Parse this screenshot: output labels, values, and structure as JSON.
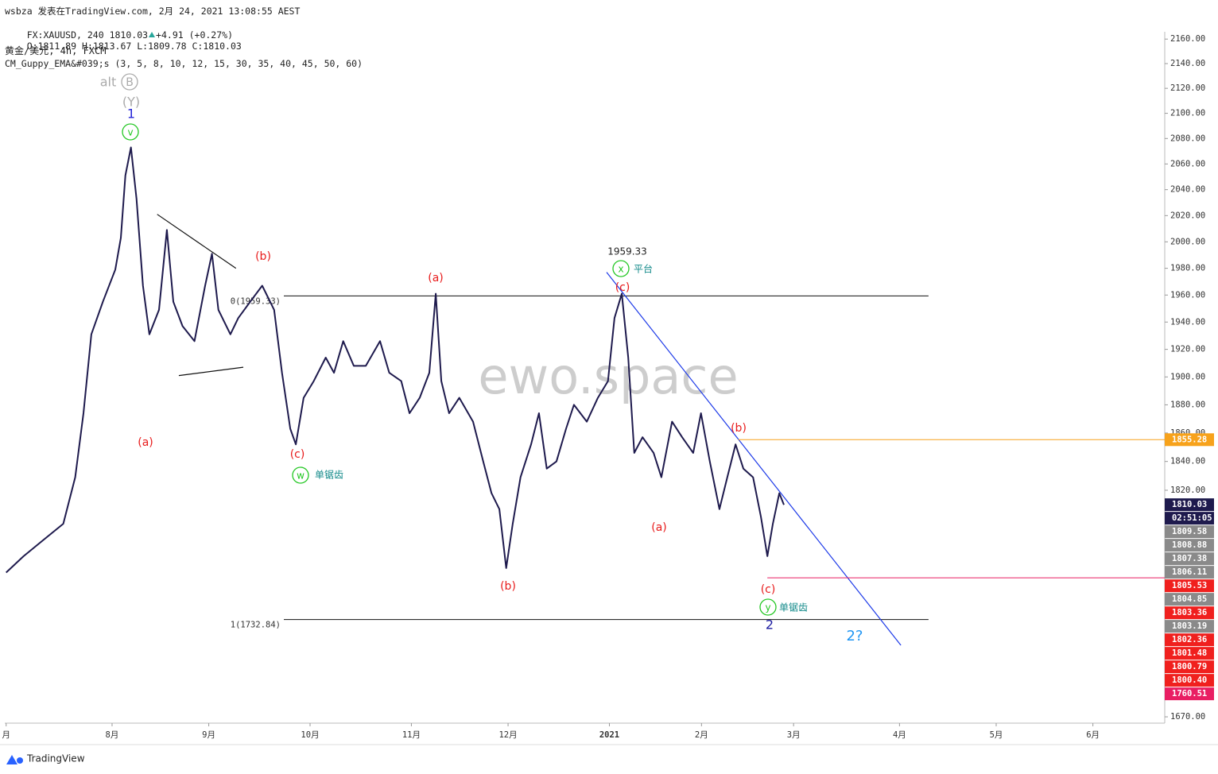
{
  "chart_data": {
    "type": "line",
    "publisher": "wsbza 发表在TradingView.com, 2月 24, 2021 13:08:55 AEST",
    "quote": {
      "symbol": "FX:XAUUSD, 240",
      "last": 1810.03,
      "change": "+4.91",
      "change_pct": "(+0.27%)",
      "ohlc": [
        {
          "key": "O:",
          "value": 1811.89
        },
        {
          "key": "H:",
          "value": 1813.67
        },
        {
          "key": "L:",
          "value": 1809.78
        },
        {
          "key": "C:",
          "value": 1810.03
        }
      ]
    },
    "title": "黄金/美元, 4h, FXCM",
    "subtitle": "CM_Guppy_EMA&#039;s (3, 5, 8, 10, 12, 15, 30, 35, 40, 45, 50, 60)",
    "watermark": "ewo.space",
    "brand": "TradingView",
    "color": "#1e1a4d",
    "log_scale": true,
    "xlim": [
      -0.3,
      251.6
    ],
    "xticks": [
      {
        "value": 0,
        "label": "月"
      },
      {
        "value": 23,
        "label": "8月"
      },
      {
        "value": 44,
        "label": "9月"
      },
      {
        "value": 66,
        "label": "10月"
      },
      {
        "value": 88,
        "label": "11月"
      },
      {
        "value": 109,
        "label": "12月"
      },
      {
        "value": 131,
        "label": "2021"
      },
      {
        "value": 151,
        "label": "2月"
      },
      {
        "value": 171,
        "label": "3月"
      },
      {
        "value": 194,
        "label": "4月"
      },
      {
        "value": 215,
        "label": "5月"
      },
      {
        "value": 236,
        "label": "6月"
      }
    ],
    "ylim": [
      1666,
      2166
    ],
    "yticks": [
      {
        "value": 2160,
        "label": "2160.00"
      },
      {
        "value": 2140,
        "label": "2140.00"
      },
      {
        "value": 2120,
        "label": "2120.00"
      },
      {
        "value": 2100,
        "label": "2100.00"
      },
      {
        "value": 2080,
        "label": "2080.00"
      },
      {
        "value": 2060,
        "label": "2060.00"
      },
      {
        "value": 2040,
        "label": "2040.00"
      },
      {
        "value": 2020,
        "label": "2020.00"
      },
      {
        "value": 2000,
        "label": "2000.00"
      },
      {
        "value": 1980,
        "label": "1980.00"
      },
      {
        "value": 1960,
        "label": "1960.00"
      },
      {
        "value": 1940,
        "label": "1940.00"
      },
      {
        "value": 1920,
        "label": "1920.00"
      },
      {
        "value": 1900,
        "label": "1900.00"
      },
      {
        "value": 1880,
        "label": "1880.00"
      },
      {
        "value": 1860,
        "label": "1860.00"
      },
      {
        "value": 1840,
        "label": "1840.00"
      },
      {
        "value": 1820,
        "label": "1820.00"
      },
      {
        "value": 1670,
        "label": "1670.00"
      }
    ],
    "x": [
      0,
      3.8,
      8.1,
      12.4,
      15,
      16.8,
      18.5,
      21,
      23.7,
      24.9,
      25.9,
      27.1,
      28.3,
      29.7,
      31.1,
      33.2,
      34.9,
      36.3,
      38.3,
      40.9,
      43.2,
      44.7,
      46.1,
      48.7,
      50.4,
      53,
      55.6,
      58.2,
      59.9,
      61.7,
      62.9,
      64.6,
      66.8,
      69.4,
      71.2,
      73.2,
      75.5,
      78.1,
      81.2,
      83.2,
      85.8,
      87.6,
      89.8,
      91.9,
      93.3,
      94.5,
      96.2,
      98.4,
      101.4,
      103.6,
      105.4,
      107.1,
      108.6,
      110,
      111.7,
      114,
      115.7,
      117.4,
      119.5,
      121.6,
      123.3,
      126.1,
      128.5,
      130.7,
      132.1,
      133.7,
      135.1,
      136.4,
      138.2,
      140.6,
      142.3,
      144.6,
      146.8,
      149.2,
      150.9,
      152.8,
      154.9,
      156.6,
      158.4,
      160.1,
      162.2,
      163.9,
      165.3,
      166.5,
      167.9,
      168.9
    ],
    "values": [
      1764,
      1775,
      1786,
      1797,
      1829,
      1874,
      1931,
      1955,
      1979,
      2003,
      2051,
      2073,
      2033,
      1967,
      1931,
      1949,
      2009,
      1955,
      1937,
      1926,
      1967,
      1991,
      1949,
      1931,
      1943,
      1955,
      1967,
      1949,
      1903,
      1863,
      1852,
      1885,
      1897,
      1914,
      1903,
      1926,
      1908,
      1908,
      1926,
      1903,
      1897,
      1874,
      1885,
      1903,
      1961,
      1897,
      1874,
      1885,
      1868,
      1840,
      1818,
      1807,
      1767,
      1797,
      1829,
      1852,
      1874,
      1835,
      1840,
      1863,
      1880,
      1868,
      1885,
      1897,
      1943,
      1961,
      1914,
      1846,
      1857,
      1846,
      1829,
      1868,
      1857,
      1846,
      1874,
      1840,
      1807,
      1829,
      1852,
      1835,
      1829,
      1802,
      1775,
      1797,
      1818,
      1810
    ],
    "levels": [
      {
        "value": 1959.33,
        "label": "0(1959.33)",
        "from": 60.3,
        "to": 200.3
      },
      {
        "value": 1732.84,
        "label": "1(1732.84)",
        "from": 60.3,
        "to": 200.3
      }
    ],
    "trendlines": [
      {
        "x": [
          130.4,
          194.3
        ],
        "values": [
          1977,
          1716
        ],
        "color": "#1c39e8"
      },
      {
        "x": [
          32.8,
          49.9
        ],
        "values": [
          2021,
          1980
        ],
        "color": "#111111"
      },
      {
        "x": [
          37.5,
          51.5
        ],
        "values": [
          1901,
          1907
        ],
        "color": "#111111"
      }
    ],
    "badges": [
      {
        "value": 1855.28,
        "label": "1855.28",
        "color": "#f7a21b",
        "line_from": 159
      },
      {
        "value": 1810.03,
        "label": "1810.03",
        "color": "#1e1a4d"
      },
      {
        "label": "02:51:05",
        "color": "#1e1a4d"
      },
      {
        "value": 1809.58,
        "label": "1809.58",
        "color": "#8a8a8a"
      },
      {
        "value": 1808.88,
        "label": "1808.88",
        "color": "#8a8a8a"
      },
      {
        "value": 1807.38,
        "label": "1807.38",
        "color": "#8a8a8a"
      },
      {
        "value": 1806.11,
        "label": "1806.11",
        "color": "#8a8a8a"
      },
      {
        "value": 1805.53,
        "label": "1805.53",
        "color": "#f0201e"
      },
      {
        "value": 1804.85,
        "label": "1804.85",
        "color": "#8a8a8a"
      },
      {
        "value": 1803.36,
        "label": "1803.36",
        "color": "#f0201e"
      },
      {
        "value": 1803.19,
        "label": "1803.19",
        "color": "#8a8a8a"
      },
      {
        "value": 1802.36,
        "label": "1802.36",
        "color": "#f0201e"
      },
      {
        "value": 1801.48,
        "label": "1801.48",
        "color": "#f0201e"
      },
      {
        "value": 1800.79,
        "label": "1800.79",
        "color": "#f0201e"
      },
      {
        "value": 1800.4,
        "label": "1800.40",
        "color": "#f0201e"
      },
      {
        "value": 1760.51,
        "label": "1760.51",
        "color": "#e91e63",
        "line_from": 165.3
      }
    ],
    "annotations": [
      {
        "text": "alt"
      },
      {
        "text": "B"
      },
      {
        "text": "(Y)"
      },
      {
        "text": "1"
      },
      {
        "text": "v"
      },
      {
        "text": "(a)"
      },
      {
        "text": "(b)"
      },
      {
        "text": "(c)"
      },
      {
        "text": "w"
      },
      {
        "text": "单锯齿"
      },
      {
        "text": "(a)"
      },
      {
        "text": "(b)"
      },
      {
        "value": 1959.33
      },
      {
        "text": "x"
      },
      {
        "text": "平台"
      },
      {
        "text": "(c)"
      },
      {
        "text": "(a)"
      },
      {
        "text": "(b)"
      },
      {
        "text": "(c)"
      },
      {
        "text": "y"
      },
      {
        "text": "单锯齿"
      },
      {
        "text": "2"
      },
      {
        "text": "2?"
      }
    ]
  }
}
